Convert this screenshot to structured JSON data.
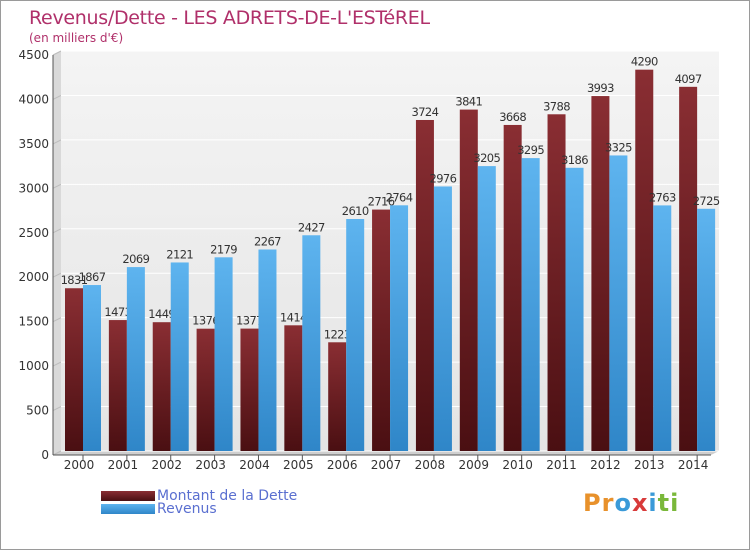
{
  "header": {
    "title": "Revenus/Dette - LES ADRETS-DE-L'ESTéREL",
    "subtitle": "(en milliers d'€)"
  },
  "colors": {
    "dette": "#6e1f24",
    "revenus": "#4aa3e4",
    "title": "#b0306a",
    "legend_text": "#5a6fd0"
  },
  "legend": [
    {
      "label": "Montant de la Dette",
      "color": "#6e1f24"
    },
    {
      "label": "Revenus",
      "color": "#4aa3e4"
    }
  ],
  "logo": {
    "letters": [
      "P",
      "r",
      "o",
      "x",
      "i",
      "t",
      "i"
    ],
    "colors": [
      "#e8912b",
      "#e8912b",
      "#3a9ad8",
      "#d83a3a",
      "#3a9ad8",
      "#7ab83a",
      "#7ab83a"
    ]
  },
  "chart_data": {
    "type": "bar",
    "categories": [
      "2000",
      "2001",
      "2002",
      "2003",
      "2004",
      "2005",
      "2006",
      "2007",
      "2008",
      "2009",
      "2010",
      "2011",
      "2012",
      "2013",
      "2014"
    ],
    "series": [
      {
        "name": "Montant de la Dette",
        "values": [
          1831,
          1473,
          1449,
          1376,
          1377,
          1414,
          1223,
          2716,
          3724,
          3841,
          3668,
          3788,
          3993,
          4290,
          4097
        ]
      },
      {
        "name": "Revenus",
        "values": [
          1867,
          2069,
          2121,
          2179,
          2267,
          2427,
          2610,
          2764,
          2976,
          3205,
          3295,
          3186,
          3325,
          2763,
          2725
        ]
      }
    ],
    "y_ticks": [
      0,
      500,
      1000,
      1500,
      2000,
      2500,
      3000,
      3500,
      4000,
      4500
    ],
    "ylim": [
      0,
      4500
    ],
    "grid": true,
    "legend_position": "bottom-left"
  }
}
